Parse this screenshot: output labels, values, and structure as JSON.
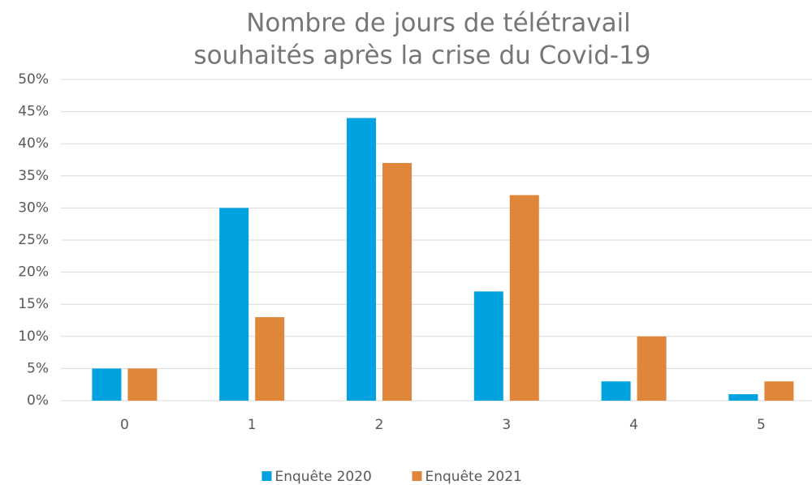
{
  "chart_data": {
    "type": "bar",
    "title": [
      "Nombre de jours de télétravail",
      "souhaités après la crise du Covid-19"
    ],
    "categories": [
      "0",
      "1",
      "2",
      "3",
      "4",
      "5"
    ],
    "series": [
      {
        "name": "Enquête 2020",
        "color": "#00a2e0",
        "values": [
          5,
          30,
          44,
          17,
          3,
          1
        ]
      },
      {
        "name": "Enquête 2021",
        "color": "#e0863a",
        "values": [
          5,
          13,
          37,
          32,
          10,
          3
        ]
      }
    ],
    "ylim": [
      0,
      50
    ],
    "yticks": [
      {
        "value": 0,
        "label": "0%"
      },
      {
        "value": 5,
        "label": "5%"
      },
      {
        "value": 10,
        "label": "10%"
      },
      {
        "value": 15,
        "label": "15%"
      },
      {
        "value": 20,
        "label": "20%"
      },
      {
        "value": 25,
        "label": "25%"
      },
      {
        "value": 30,
        "label": "30%"
      },
      {
        "value": 35,
        "label": "35%"
      },
      {
        "value": 40,
        "label": "40%"
      },
      {
        "value": 45,
        "label": "45%"
      },
      {
        "value": 50,
        "label": "50%"
      }
    ],
    "grid": true,
    "legend": "bottom"
  }
}
